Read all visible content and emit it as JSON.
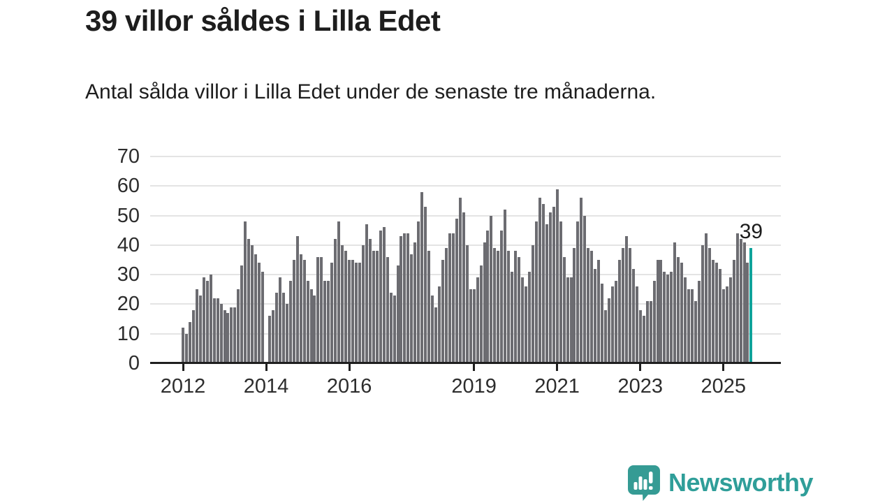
{
  "title": "39 villor såldes i Lilla Edet",
  "subtitle": "Antal sålda villor i Lilla Edet under de senaste tre månaderna.",
  "annotation": {
    "text": "39"
  },
  "logo": {
    "text": "Newsworthy",
    "icon": "newsworthy-speech-bubble-chart-icon"
  },
  "colors": {
    "bar": "#6c6c71",
    "highlight": "#0fa39b",
    "grid": "#e4e4e4",
    "axis": "#1f1f1f",
    "text": "#1d1d1d",
    "logo": "#2f9e99",
    "logo_bubble": "#359b94"
  },
  "chart_data": {
    "type": "bar",
    "title": "39 villor såldes i Lilla Edet",
    "subtitle": "Antal sålda villor i Lilla Edet under de senaste tre månaderna.",
    "xlabel": "",
    "ylabel": "",
    "x_start": "2012-01",
    "x_end": "2025-09",
    "x_unit": "month",
    "ylim": [
      0,
      70
    ],
    "grid": true,
    "legend": false,
    "highlight_last": true,
    "last_value_label": "39",
    "yticks": [
      0,
      10,
      20,
      30,
      40,
      50,
      60,
      70
    ],
    "xticks": [
      {
        "label": "2012",
        "index": 0
      },
      {
        "label": "2014",
        "index": 24
      },
      {
        "label": "2016",
        "index": 48
      },
      {
        "label": "2019",
        "index": 84
      },
      {
        "label": "2021",
        "index": 108
      },
      {
        "label": "2023",
        "index": 132
      },
      {
        "label": "2025",
        "index": 156
      }
    ],
    "values": [
      12,
      10,
      14,
      18,
      25,
      23,
      29,
      28,
      30,
      22,
      22,
      20,
      18,
      17,
      19,
      19,
      25,
      33,
      48,
      42,
      40,
      37,
      34,
      31,
      0,
      16,
      18,
      24,
      29,
      24,
      20,
      28,
      35,
      43,
      37,
      35,
      28,
      25,
      23,
      36,
      36,
      28,
      28,
      34,
      42,
      48,
      40,
      38,
      35,
      35,
      34,
      34,
      40,
      47,
      42,
      38,
      38,
      45,
      46,
      36,
      24,
      23,
      33,
      43,
      44,
      44,
      37,
      41,
      48,
      58,
      53,
      38,
      23,
      19,
      26,
      35,
      39,
      44,
      44,
      49,
      56,
      51,
      40,
      25,
      25,
      29,
      33,
      41,
      45,
      50,
      39,
      38,
      45,
      52,
      38,
      31,
      38,
      36,
      29,
      26,
      31,
      40,
      48,
      56,
      54,
      47,
      51,
      53,
      59,
      48,
      36,
      29,
      29,
      39,
      48,
      56,
      50,
      39,
      38,
      32,
      35,
      27,
      18,
      22,
      26,
      28,
      35,
      39,
      43,
      39,
      32,
      26,
      18,
      16,
      21,
      21,
      28,
      35,
      35,
      31,
      30,
      31,
      41,
      36,
      34,
      29,
      25,
      25,
      21,
      28,
      40,
      44,
      39,
      35,
      34,
      32,
      25,
      26,
      29,
      35,
      44,
      42,
      41,
      34,
      39
    ]
  }
}
